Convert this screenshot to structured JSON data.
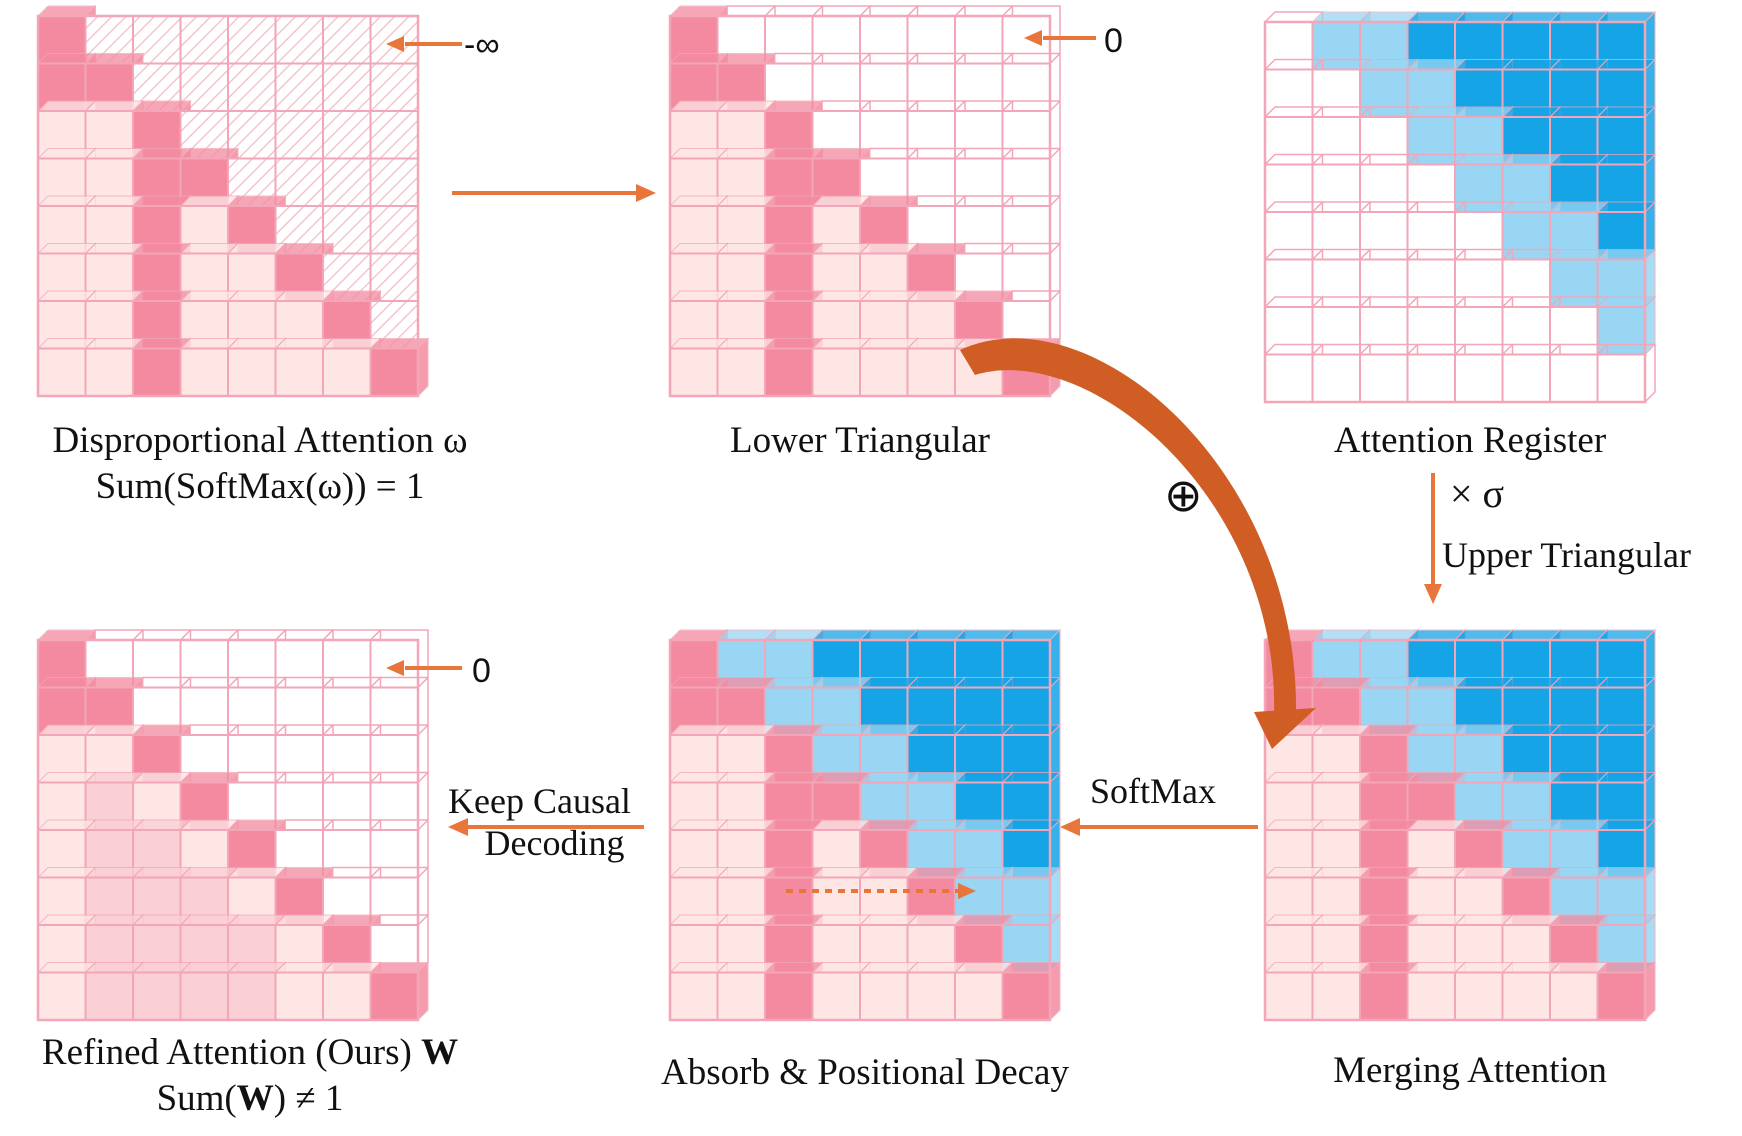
{
  "colors": {
    "pink_strong": "#f48aa0",
    "pink_light": "#fde6e4",
    "pink_mid": "#fbcfd6",
    "blue_strong": "#15a4e6",
    "blue_light": "#98d6f4",
    "grid_line": "#f2a6b7",
    "arrow": "#e8763a",
    "curve_arrow": "#cf5d24"
  },
  "matrices": {
    "disproportional": {
      "label_line1": "Disproportional Attention ω",
      "label_line2": "Sum(SoftMax(ω)) = 1",
      "marker": "-∞"
    },
    "lower_triangular": {
      "label": "Lower Triangular",
      "marker": "0"
    },
    "attention_register": {
      "label": "Attention Register"
    },
    "merging": {
      "label": "Merging Attention"
    },
    "absorb": {
      "label": "Absorb & Positional Decay"
    },
    "refined": {
      "label_line1_text": "Refined Attention (Ours)",
      "label_line1_bold": "W",
      "label_line2_pre": "Sum(",
      "label_line2_bold": "W",
      "label_line2_post": ") ≠ 1",
      "marker": "0"
    }
  },
  "operators": {
    "plus": "⊕",
    "times": "× σ",
    "upper_triangular": "Upper Triangular",
    "softmax": "SoftMax",
    "keep_causal_line1": "Keep Causal",
    "keep_causal_line2": "Decoding"
  }
}
